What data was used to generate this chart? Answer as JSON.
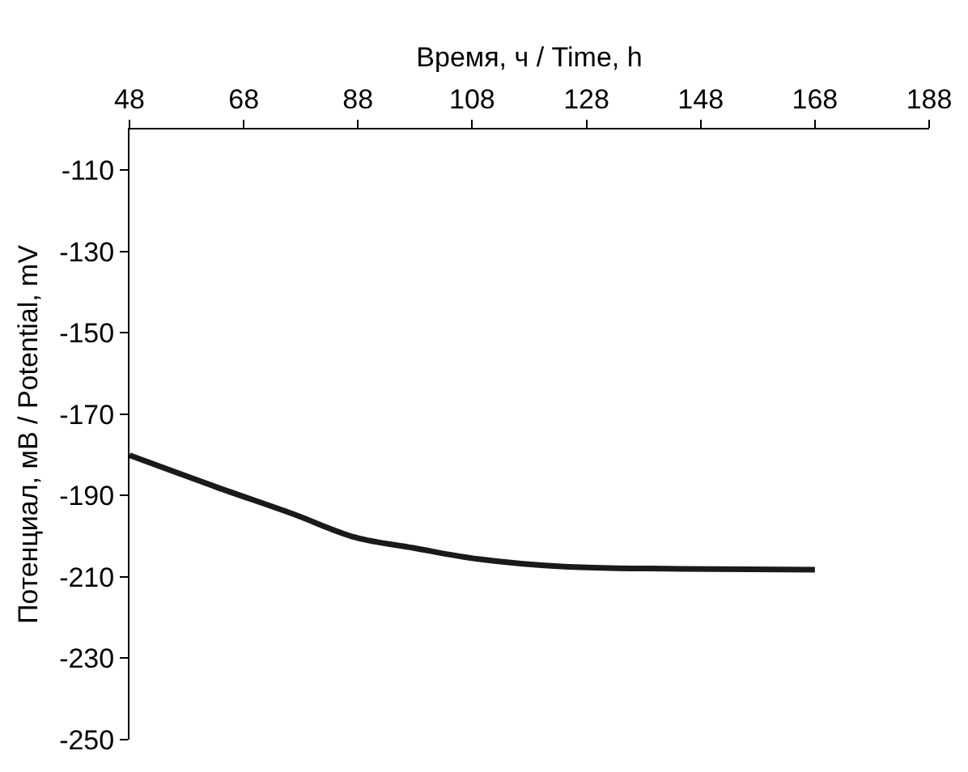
{
  "chart_data": {
    "type": "line",
    "xlabel": "Время, ч / Time, h",
    "ylabel": "Потенциал, мВ / Potential, mV",
    "xlim": [
      48,
      188
    ],
    "xticks": [
      48,
      68,
      88,
      108,
      128,
      148,
      168,
      188
    ],
    "ylim": [
      -250,
      -100
    ],
    "yticks": [
      -250,
      -230,
      -210,
      -190,
      -170,
      -150,
      -130,
      -110
    ],
    "legend": false,
    "marker": "none",
    "line_style": "solid",
    "series": [
      {
        "color": "#1a1a1a",
        "x": [
          48,
          63.2,
          76.4,
          87.6,
          97.8,
          109,
          124.2,
          144.4,
          168
        ],
        "values": [
          -180.1,
          -187.9,
          -194.4,
          -200.3,
          -202.9,
          -205.6,
          -207.5,
          -208,
          -208.2
        ]
      }
    ]
  }
}
